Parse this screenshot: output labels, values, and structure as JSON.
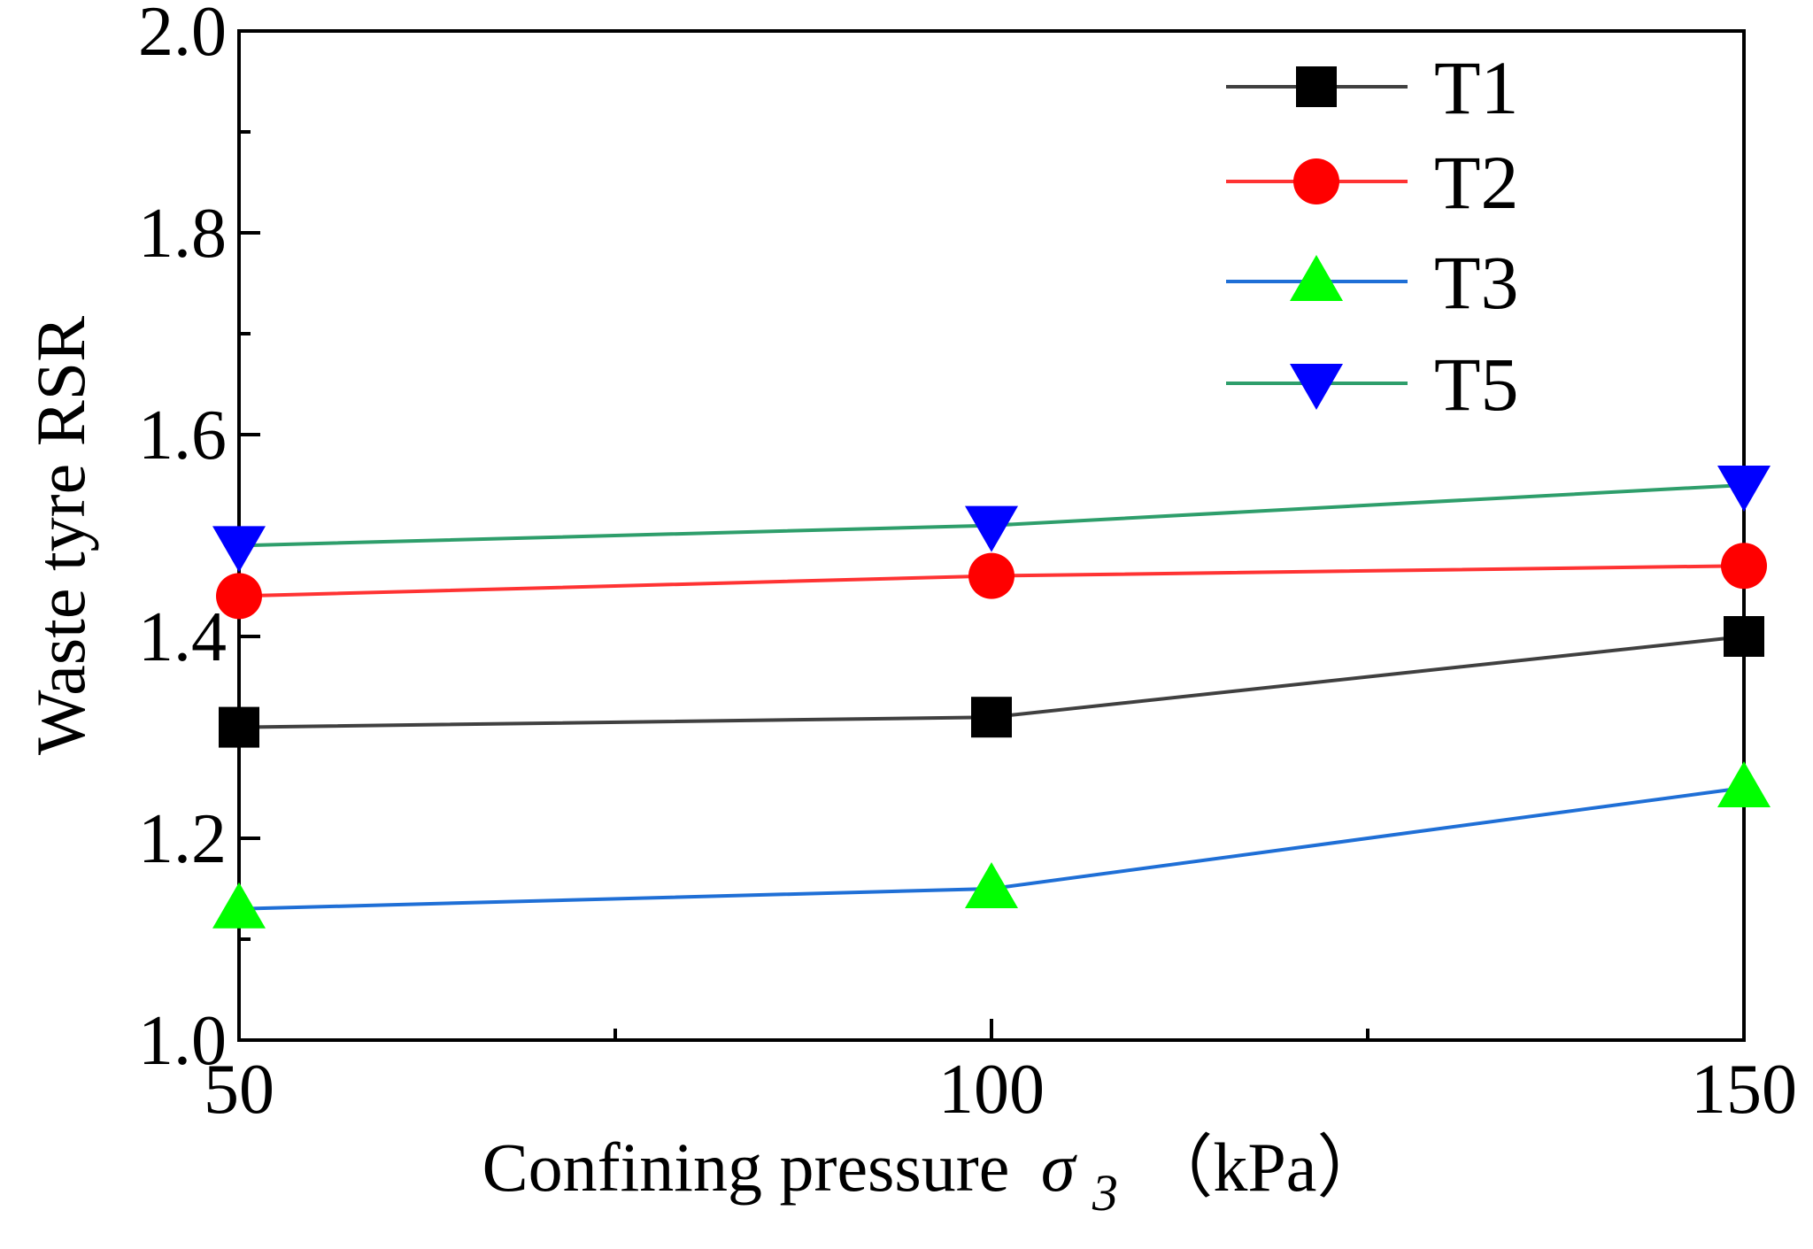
{
  "chart_data": {
    "type": "line",
    "title": "",
    "xlabel": "Confining pressure",
    "xlabel_symbol": "σ",
    "xlabel_subscript": "3",
    "xlabel_unit": "（kPa）",
    "ylabel": "Waste tyre RSR",
    "x": [
      50,
      100,
      150
    ],
    "xlim": [
      50,
      150
    ],
    "ylim": [
      1.0,
      2.0
    ],
    "xticks": [
      "50",
      "100",
      "150"
    ],
    "yticks": [
      "1.0",
      "1.2",
      "1.4",
      "1.6",
      "1.8",
      "2.0"
    ],
    "legend_position": "top-right",
    "series": [
      {
        "name": "T1",
        "values": [
          1.31,
          1.32,
          1.4
        ],
        "line_color": "#404040",
        "marker_color": "#000000",
        "marker": "square"
      },
      {
        "name": "T2",
        "values": [
          1.44,
          1.46,
          1.47
        ],
        "line_color": "#ff3333",
        "marker_color": "#ff0000",
        "marker": "circle"
      },
      {
        "name": "T3",
        "values": [
          1.13,
          1.15,
          1.25
        ],
        "line_color": "#1f6fd6",
        "marker_color": "#00ff00",
        "marker": "triangle-up"
      },
      {
        "name": "T5",
        "values": [
          1.49,
          1.51,
          1.55
        ],
        "line_color": "#2e9e6b",
        "marker_color": "#0000ff",
        "marker": "triangle-down"
      }
    ]
  }
}
